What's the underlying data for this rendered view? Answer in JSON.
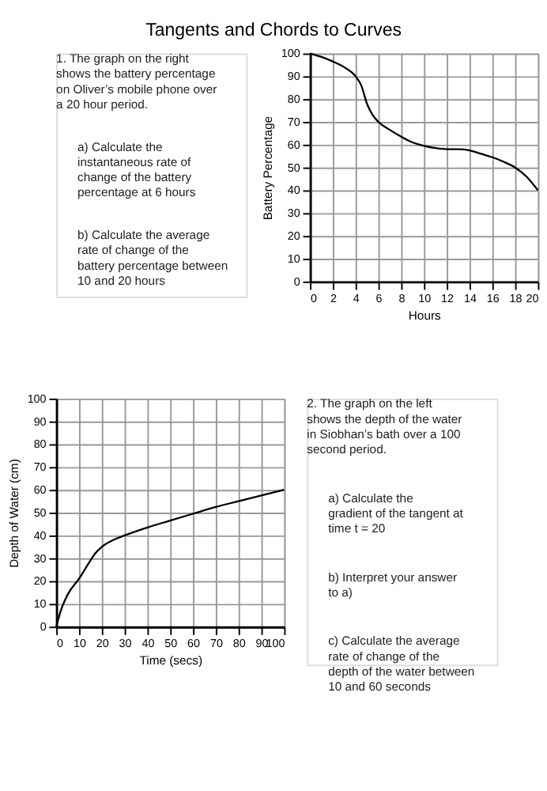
{
  "chart_data": [
    {
      "type": "line",
      "title": "Tangents and Chords to Curves",
      "xlabel": "Hours",
      "ylabel": "Battery Percentage",
      "x": [
        0,
        1,
        2,
        3,
        4,
        4.5,
        5,
        5.5,
        6,
        7,
        8,
        9,
        10,
        11,
        12,
        13,
        14,
        15,
        16,
        17,
        18,
        19,
        20
      ],
      "series": [
        {
          "color": "#000000",
          "values": [
            100,
            98.5,
            96.5,
            94,
            90,
            86,
            78,
            73,
            70,
            66.5,
            63.5,
            61,
            59.5,
            58.5,
            58,
            58,
            57.5,
            56,
            54.5,
            52.5,
            50,
            46,
            40
          ]
        }
      ],
      "xlim": [
        0,
        20
      ],
      "xticks": [
        0,
        2,
        4,
        6,
        8,
        10,
        12,
        14,
        16,
        18,
        20
      ],
      "ylim": [
        0,
        100
      ],
      "yticks": [
        0,
        10,
        20,
        30,
        40,
        50,
        60,
        70,
        80,
        90,
        100
      ],
      "grid": true,
      "legend": false,
      "annotations": [
        "1.   The graph on the right shows the battery percentage on Oliver’s mobile phone over a 20 hour period.",
        "a)   Calculate the instantaneous rate of change of the battery percentage at 6 hours",
        "b)   Calculate the average rate of change of the battery percentage between 10 and 20 hours"
      ]
    },
    {
      "type": "line",
      "xlabel": "Time (secs)",
      "ylabel": "Depth of Water (cm)",
      "x": [
        0,
        2,
        5,
        10,
        15,
        17,
        20,
        25,
        30,
        40,
        50,
        60,
        70,
        80,
        90,
        100
      ],
      "series": [
        {
          "color": "#000000",
          "values": [
            0,
            7,
            14,
            21,
            29,
            32,
            35,
            38,
            40,
            43.5,
            46.5,
            49.5,
            52.5,
            55,
            57.5,
            60
          ]
        }
      ],
      "xlim": [
        0,
        100
      ],
      "xticks": [
        0,
        10,
        20,
        30,
        40,
        50,
        60,
        70,
        80,
        90,
        100
      ],
      "ylim": [
        0,
        100
      ],
      "yticks": [
        0,
        10,
        20,
        30,
        40,
        50,
        60,
        70,
        80,
        90,
        100
      ],
      "grid": true,
      "legend": false,
      "annotations": [
        "2.   The graph on the left shows the depth of the water in Siobhan’s bath over a 100 second period.",
        "a)   Calculate the gradient of the tangent at time t = 20",
        "b)   Interpret your answer to a)",
        "c)   Calculate the average rate of change of the depth of the water between 10 and 60 seconds"
      ]
    }
  ]
}
